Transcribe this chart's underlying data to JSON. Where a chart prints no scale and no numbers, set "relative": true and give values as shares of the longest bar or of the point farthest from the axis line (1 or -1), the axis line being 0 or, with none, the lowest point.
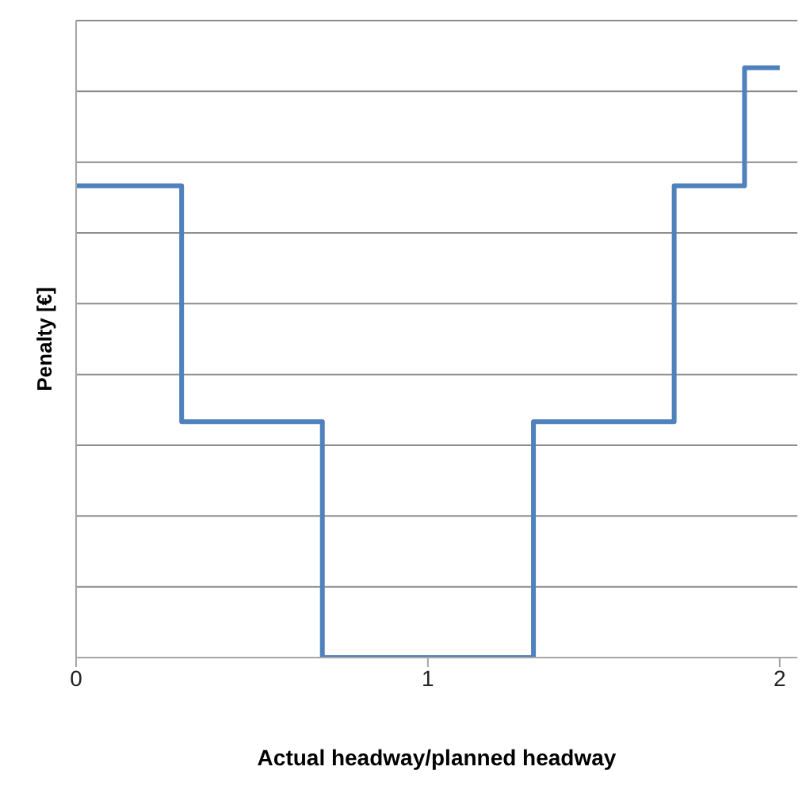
{
  "chart_data": {
    "type": "step",
    "relative": true,
    "xlabel": "Actual headway/planned  headway",
    "ylabel": "Penalty [€]",
    "x": [
      0,
      0.3,
      0.7,
      1.3,
      1.7,
      1.9,
      2
    ],
    "series": [
      {
        "color": "#4f81bd",
        "values": [
          0.8,
          0.4,
          0,
          0.4,
          0.8,
          1,
          1
        ]
      }
    ],
    "xlim": [
      0,
      2.05
    ],
    "xticks": [
      0,
      1,
      2
    ],
    "grid": "y",
    "legend": false,
    "marker": "none"
  }
}
